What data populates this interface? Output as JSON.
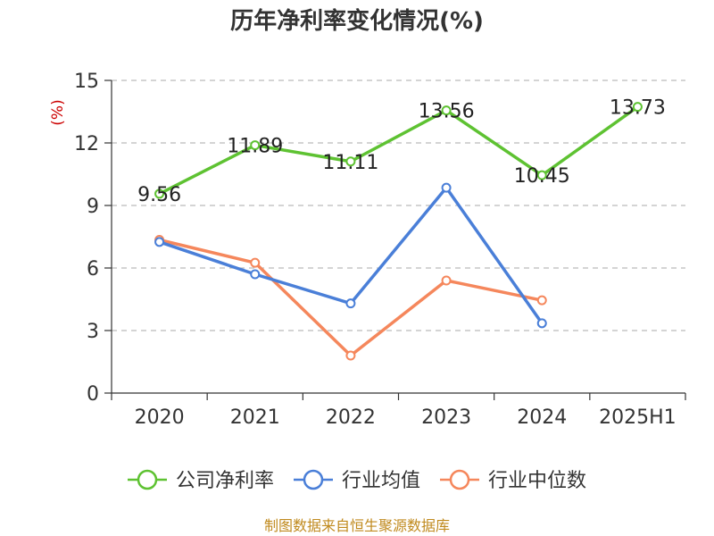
{
  "chart_data": {
    "type": "line",
    "title": "历年净利率变化情况(%)",
    "ylabel": "(%)",
    "xlabel": "",
    "categories": [
      "2020",
      "2021",
      "2022",
      "2023",
      "2024",
      "2025H1"
    ],
    "ylim": [
      0,
      15
    ],
    "yticks": [
      0,
      3,
      6,
      9,
      12,
      15
    ],
    "grid": "horizontal-dashed",
    "legend_position": "bottom",
    "series": [
      {
        "name": "公司净利率",
        "color": "#5ec232",
        "values": [
          9.56,
          11.89,
          11.11,
          13.56,
          10.45,
          13.73
        ],
        "labels": [
          "9.56",
          "11.89",
          "11.11",
          "13.56",
          "10.45",
          "13.73"
        ],
        "show_labels": true
      },
      {
        "name": "行业均值",
        "color": "#4a7fd8",
        "values": [
          7.25,
          5.7,
          4.3,
          9.85,
          3.35,
          null
        ],
        "show_labels": false
      },
      {
        "name": "行业中位数",
        "color": "#f5875c",
        "values": [
          7.35,
          6.25,
          1.8,
          5.4,
          4.45,
          null
        ],
        "show_labels": false
      }
    ]
  },
  "footer": {
    "source": "制图数据来自恒生聚源数据库"
  }
}
